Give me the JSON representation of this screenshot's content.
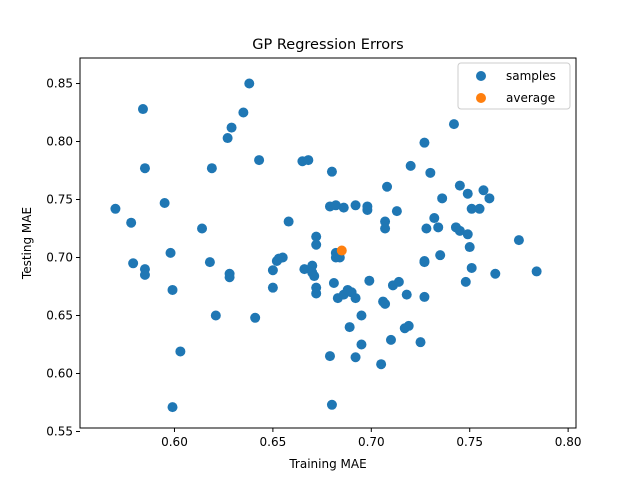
{
  "chart_data": {
    "type": "scatter",
    "title": "GP Regression Errors",
    "xlabel": "Training MAE",
    "ylabel": "Testing MAE",
    "xlim": [
      0.552,
      0.804
    ],
    "ylim": [
      0.553,
      0.872
    ],
    "xticks": [
      0.6,
      0.65,
      0.7,
      0.75,
      0.8
    ],
    "xtick_labels": [
      "0.60",
      "0.65",
      "0.70",
      "0.75",
      "0.80"
    ],
    "yticks": [
      0.55,
      0.6,
      0.65,
      0.7,
      0.75,
      0.8,
      0.85
    ],
    "ytick_labels": [
      "0.55",
      "0.60",
      "0.65",
      "0.70",
      "0.75",
      "0.80",
      "0.85"
    ],
    "grid": false,
    "legend_position": "top-right",
    "series": [
      {
        "name": "samples",
        "color": "#1f77b4",
        "points": [
          [
            0.57,
            0.742
          ],
          [
            0.578,
            0.73
          ],
          [
            0.579,
            0.695
          ],
          [
            0.584,
            0.828
          ],
          [
            0.585,
            0.777
          ],
          [
            0.585,
            0.69
          ],
          [
            0.585,
            0.685
          ],
          [
            0.595,
            0.747
          ],
          [
            0.598,
            0.704
          ],
          [
            0.599,
            0.672
          ],
          [
            0.599,
            0.571
          ],
          [
            0.603,
            0.619
          ],
          [
            0.614,
            0.725
          ],
          [
            0.618,
            0.696
          ],
          [
            0.619,
            0.777
          ],
          [
            0.621,
            0.65
          ],
          [
            0.627,
            0.803
          ],
          [
            0.628,
            0.686
          ],
          [
            0.628,
            0.683
          ],
          [
            0.629,
            0.812
          ],
          [
            0.635,
            0.825
          ],
          [
            0.638,
            0.85
          ],
          [
            0.641,
            0.648
          ],
          [
            0.643,
            0.784
          ],
          [
            0.65,
            0.674
          ],
          [
            0.65,
            0.689
          ],
          [
            0.652,
            0.697
          ],
          [
            0.653,
            0.699
          ],
          [
            0.655,
            0.7
          ],
          [
            0.658,
            0.731
          ],
          [
            0.665,
            0.783
          ],
          [
            0.666,
            0.69
          ],
          [
            0.668,
            0.784
          ],
          [
            0.67,
            0.693
          ],
          [
            0.67,
            0.687
          ],
          [
            0.671,
            0.684
          ],
          [
            0.672,
            0.669
          ],
          [
            0.672,
            0.674
          ],
          [
            0.672,
            0.718
          ],
          [
            0.672,
            0.711
          ],
          [
            0.679,
            0.615
          ],
          [
            0.679,
            0.744
          ],
          [
            0.68,
            0.573
          ],
          [
            0.68,
            0.774
          ],
          [
            0.681,
            0.678
          ],
          [
            0.682,
            0.704
          ],
          [
            0.682,
            0.7
          ],
          [
            0.682,
            0.745
          ],
          [
            0.683,
            0.665
          ],
          [
            0.684,
            0.7
          ],
          [
            0.686,
            0.668
          ],
          [
            0.686,
            0.743
          ],
          [
            0.688,
            0.672
          ],
          [
            0.689,
            0.64
          ],
          [
            0.69,
            0.67
          ],
          [
            0.692,
            0.665
          ],
          [
            0.692,
            0.745
          ],
          [
            0.692,
            0.614
          ],
          [
            0.695,
            0.65
          ],
          [
            0.695,
            0.625
          ],
          [
            0.698,
            0.741
          ],
          [
            0.698,
            0.744
          ],
          [
            0.699,
            0.68
          ],
          [
            0.705,
            0.608
          ],
          [
            0.706,
            0.662
          ],
          [
            0.707,
            0.725
          ],
          [
            0.707,
            0.66
          ],
          [
            0.707,
            0.731
          ],
          [
            0.708,
            0.761
          ],
          [
            0.71,
            0.629
          ],
          [
            0.711,
            0.676
          ],
          [
            0.713,
            0.74
          ],
          [
            0.714,
            0.679
          ],
          [
            0.717,
            0.639
          ],
          [
            0.718,
            0.668
          ],
          [
            0.719,
            0.641
          ],
          [
            0.72,
            0.779
          ],
          [
            0.725,
            0.627
          ],
          [
            0.727,
            0.799
          ],
          [
            0.727,
            0.697
          ],
          [
            0.727,
            0.696
          ],
          [
            0.727,
            0.666
          ],
          [
            0.728,
            0.725
          ],
          [
            0.73,
            0.773
          ],
          [
            0.732,
            0.734
          ],
          [
            0.734,
            0.726
          ],
          [
            0.735,
            0.702
          ],
          [
            0.736,
            0.751
          ],
          [
            0.742,
            0.815
          ],
          [
            0.743,
            0.726
          ],
          [
            0.745,
            0.723
          ],
          [
            0.745,
            0.762
          ],
          [
            0.748,
            0.679
          ],
          [
            0.749,
            0.755
          ],
          [
            0.749,
            0.72
          ],
          [
            0.75,
            0.709
          ],
          [
            0.751,
            0.742
          ],
          [
            0.751,
            0.691
          ],
          [
            0.755,
            0.742
          ],
          [
            0.757,
            0.758
          ],
          [
            0.76,
            0.751
          ],
          [
            0.763,
            0.686
          ],
          [
            0.775,
            0.715
          ],
          [
            0.784,
            0.688
          ]
        ]
      },
      {
        "name": "average",
        "color": "#ff7f0e",
        "points": [
          [
            0.685,
            0.706
          ]
        ]
      }
    ]
  }
}
